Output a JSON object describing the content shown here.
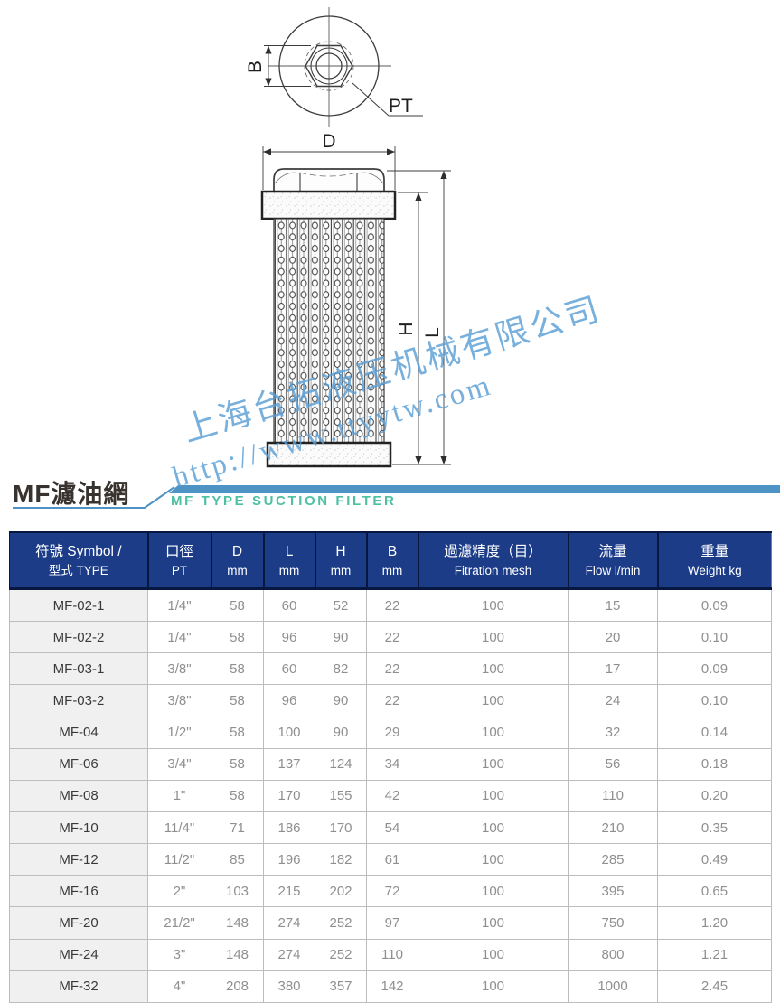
{
  "watermark": {
    "line1": "上海台拓液压机械有限公司",
    "line2": "http://www.ttyytw.com"
  },
  "diagram": {
    "labels": {
      "b": "B",
      "pt": "PT",
      "d": "D",
      "h": "H",
      "l": "L"
    }
  },
  "section_title": {
    "zh": "MF濾油網",
    "en": "MF TYPE SUCTION FILTER"
  },
  "colors": {
    "header_bg": "#1c3c88",
    "header_text": "#ffffff",
    "accent_bar": "#4e93c6",
    "subtitle_teal": "#4ec0a2",
    "watermark_blue": "#5b9fd6",
    "row_alt_bg": "#f0f0f0",
    "data_text": "#8f8f8f",
    "symbol_text": "#3a3a3a"
  },
  "table": {
    "columns": [
      {
        "line1": "符號 Symbol /",
        "line2": "型式 TYPE"
      },
      {
        "line1": "口徑",
        "line2": "PT"
      },
      {
        "line1": "D",
        "line2": "mm"
      },
      {
        "line1": "L",
        "line2": "mm"
      },
      {
        "line1": "H",
        "line2": "mm"
      },
      {
        "line1": "B",
        "line2": "mm"
      },
      {
        "line1": "過濾精度（目）",
        "line2": "Fitration mesh"
      },
      {
        "line1": "流量",
        "line2": "Flow l/min"
      },
      {
        "line1": "重量",
        "line2": "Weight kg"
      }
    ],
    "rows": [
      [
        "MF-02-1",
        "1/4\"",
        "58",
        "60",
        "52",
        "22",
        "100",
        "15",
        "0.09"
      ],
      [
        "MF-02-2",
        "1/4\"",
        "58",
        "96",
        "90",
        "22",
        "100",
        "20",
        "0.10"
      ],
      [
        "MF-03-1",
        "3/8\"",
        "58",
        "60",
        "82",
        "22",
        "100",
        "17",
        "0.09"
      ],
      [
        "MF-03-2",
        "3/8\"",
        "58",
        "96",
        "90",
        "22",
        "100",
        "24",
        "0.10"
      ],
      [
        "MF-04",
        "1/2\"",
        "58",
        "100",
        "90",
        "29",
        "100",
        "32",
        "0.14"
      ],
      [
        "MF-06",
        "3/4\"",
        "58",
        "137",
        "124",
        "34",
        "100",
        "56",
        "0.18"
      ],
      [
        "MF-08",
        "1\"",
        "58",
        "170",
        "155",
        "42",
        "100",
        "110",
        "0.20"
      ],
      [
        "MF-10",
        "11/4\"",
        "71",
        "186",
        "170",
        "54",
        "100",
        "210",
        "0.35"
      ],
      [
        "MF-12",
        "11/2\"",
        "85",
        "196",
        "182",
        "61",
        "100",
        "285",
        "0.49"
      ],
      [
        "MF-16",
        "2\"",
        "103",
        "215",
        "202",
        "72",
        "100",
        "395",
        "0.65"
      ],
      [
        "MF-20",
        "21/2\"",
        "148",
        "274",
        "252",
        "97",
        "100",
        "750",
        "1.20"
      ],
      [
        "MF-24",
        "3\"",
        "148",
        "274",
        "252",
        "110",
        "100",
        "800",
        "1.21"
      ],
      [
        "MF-32",
        "4\"",
        "208",
        "380",
        "357",
        "142",
        "100",
        "1000",
        "2.45"
      ]
    ]
  }
}
